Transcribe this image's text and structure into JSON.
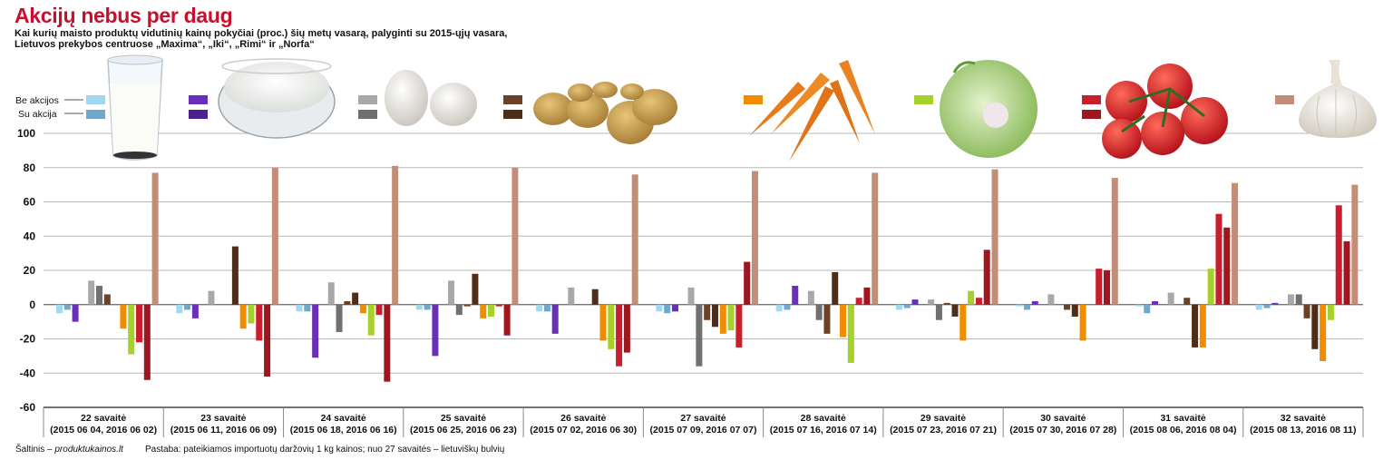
{
  "header": {
    "title": "Akcijų nebus per daug",
    "subtitle": "Kai kurių maisto produktų vidutinių kainų pokyčiai (proc.) šių metų vasarą, palyginti su 2015-ųjų vasara, Lietuvos prekybos centruose „Maxima“, „Iki“, „Rimi“ ir „Norfa“"
  },
  "legend": {
    "without_promo": "Be akcijos",
    "with_promo": "Su akcija"
  },
  "footer": {
    "source_prefix": "Šaltinis – ",
    "source_site": "produktukainos.lt",
    "note": "Pastaba: pateikiamos importuotų daržovių 1 kg kainos; nuo 27 savaitės – lietuviškų bulvių"
  },
  "chart_data": {
    "type": "bar",
    "ylim": [
      -60,
      100
    ],
    "yticks": [
      -60,
      -40,
      -20,
      0,
      20,
      40,
      60,
      80,
      100
    ],
    "grid": true,
    "categories": [
      {
        "week": "22 savaitė",
        "dates": "(2015 06 04, 2016 06 02)"
      },
      {
        "week": "23 savaitė",
        "dates": "(2015 06 11, 2016 06 09)"
      },
      {
        "week": "24 savaitė",
        "dates": "(2015 06 18, 2016 06 16)"
      },
      {
        "week": "25 savaitė",
        "dates": "(2015 06 25, 2016 06 23)"
      },
      {
        "week": "26 savaitė",
        "dates": "(2015 07 02, 2016 06 30)"
      },
      {
        "week": "27 savaitė",
        "dates": "(2015 07 09, 2016 07 07)"
      },
      {
        "week": "28 savaitė",
        "dates": "(2015 07 16, 2016 07 14)"
      },
      {
        "week": "29 savaitė",
        "dates": "(2015 07 23, 2016 07 21)"
      },
      {
        "week": "30 savaitė",
        "dates": "(2015 07 30, 2016 07 28)"
      },
      {
        "week": "31 savaitė",
        "dates": "(2015 08 06, 2016 08 04)"
      },
      {
        "week": "32 savaitė",
        "dates": "(2015 08 13, 2016 08 11)"
      }
    ],
    "products": [
      {
        "icon": "milk-glass-icon",
        "color_without": "#9fd8f0",
        "color_with": "#6fa8cc"
      },
      {
        "icon": "cottage-cheese-bowl-icon",
        "color_without": "#6a2fb8",
        "color_with": "#4b1f8c"
      },
      {
        "icon": "eggs-icon",
        "color_without": "#a8a8a8",
        "color_with": "#707070"
      },
      {
        "icon": "potatoes-icon",
        "color_without": "#6b4228",
        "color_with": "#4e2e18"
      },
      {
        "icon": "carrots-icon",
        "color_without": "#f08c00",
        "color_with": null
      },
      {
        "icon": "cabbage-icon",
        "color_without": "#a6d12a",
        "color_with": null
      },
      {
        "icon": "tomatoes-icon",
        "color_without": "#c81e2e",
        "color_with": "#a0161f"
      },
      {
        "icon": "garlic-icon",
        "color_without": "#c28e78",
        "color_with": null
      }
    ],
    "values": [
      [
        [
          -5,
          -3
        ],
        [
          -10,
          0
        ],
        [
          14,
          11
        ],
        [
          6,
          0
        ],
        [
          -14,
          null
        ],
        [
          -29,
          null
        ],
        [
          -22,
          -44
        ],
        [
          77,
          null
        ]
      ],
      [
        [
          -5,
          -3
        ],
        [
          -8,
          0
        ],
        [
          8,
          0
        ],
        [
          0,
          34
        ],
        [
          -14,
          null
        ],
        [
          -11,
          null
        ],
        [
          -21,
          -42
        ],
        [
          80,
          null
        ]
      ],
      [
        [
          -4,
          -4
        ],
        [
          -31,
          0
        ],
        [
          13,
          -16
        ],
        [
          2,
          7
        ],
        [
          -5,
          null
        ],
        [
          -18,
          null
        ],
        [
          -6,
          -45
        ],
        [
          81,
          null
        ]
      ],
      [
        [
          -3,
          -3
        ],
        [
          -30,
          0
        ],
        [
          14,
          -6
        ],
        [
          -1,
          18
        ],
        [
          -8,
          null
        ],
        [
          -7,
          null
        ],
        [
          -1,
          -18
        ],
        [
          80,
          null
        ]
      ],
      [
        [
          -4,
          -4
        ],
        [
          -17,
          0
        ],
        [
          10,
          0
        ],
        [
          0,
          9
        ],
        [
          -21,
          null
        ],
        [
          -26,
          null
        ],
        [
          -36,
          -28
        ],
        [
          76,
          null
        ]
      ],
      [
        [
          -4,
          -5
        ],
        [
          -4,
          0
        ],
        [
          10,
          -36
        ],
        [
          -9,
          -13
        ],
        [
          -17,
          null
        ],
        [
          -15,
          null
        ],
        [
          -25,
          25
        ],
        [
          78,
          null
        ]
      ],
      [
        [
          -4,
          -3
        ],
        [
          11,
          0
        ],
        [
          8,
          -9
        ],
        [
          -17,
          19
        ],
        [
          -19,
          null
        ],
        [
          -34,
          null
        ],
        [
          4,
          10
        ],
        [
          77,
          null
        ]
      ],
      [
        [
          -3,
          -2
        ],
        [
          3,
          0
        ],
        [
          3,
          -9
        ],
        [
          1,
          -7
        ],
        [
          -21,
          null
        ],
        [
          8,
          null
        ],
        [
          4,
          32
        ],
        [
          79,
          null
        ]
      ],
      [
        [
          -1,
          -3
        ],
        [
          2,
          0
        ],
        [
          6,
          0
        ],
        [
          -3,
          -7
        ],
        [
          -21,
          null
        ],
        [
          0,
          null
        ],
        [
          21,
          20
        ],
        [
          74,
          null
        ]
      ],
      [
        [
          -1,
          -5
        ],
        [
          2,
          0
        ],
        [
          7,
          0
        ],
        [
          4,
          -25
        ],
        [
          -25,
          null
        ],
        [
          21,
          null
        ],
        [
          53,
          45
        ],
        [
          71,
          null
        ]
      ],
      [
        [
          -3,
          -2
        ],
        [
          1,
          0
        ],
        [
          6,
          6
        ],
        [
          -8,
          -26
        ],
        [
          -33,
          null
        ],
        [
          -9,
          null
        ],
        [
          58,
          37
        ],
        [
          70,
          null
        ]
      ]
    ]
  }
}
